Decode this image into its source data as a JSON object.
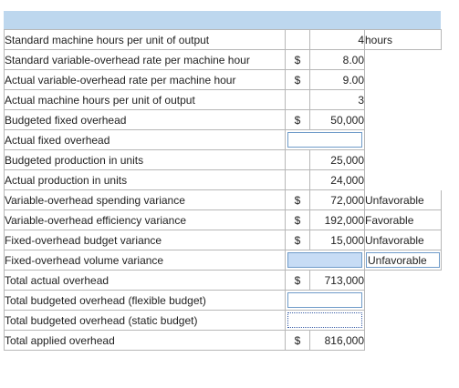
{
  "rows": [
    {
      "label": "Standard machine hours per unit of output",
      "dollar": "",
      "value": "4",
      "unit": "hours",
      "value_input": "",
      "unit_input": ""
    },
    {
      "label": "Standard variable-overhead rate per machine hour",
      "dollar": "$",
      "value": "8.00",
      "unit": "",
      "value_input": "",
      "unit_input": ""
    },
    {
      "label": "Actual variable-overhead rate per machine hour",
      "dollar": "$",
      "value": "9.00",
      "unit": "",
      "value_input": "",
      "unit_input": ""
    },
    {
      "label": "Actual machine hours per unit of output",
      "dollar": "",
      "value": "3",
      "unit": "",
      "value_input": "",
      "unit_input": ""
    },
    {
      "label": "Budgeted fixed overhead",
      "dollar": "$",
      "value": "50,000",
      "unit": "",
      "value_input": "",
      "unit_input": ""
    },
    {
      "label": "Actual fixed overhead",
      "dollar": "",
      "value": "",
      "unit": "",
      "value_input": "",
      "unit_input": ""
    },
    {
      "label": "Budgeted production in units",
      "dollar": "",
      "value": "25,000",
      "unit": "",
      "value_input": "",
      "unit_input": ""
    },
    {
      "label": "Actual production in units",
      "dollar": "",
      "value": "24,000",
      "unit": "",
      "value_input": "",
      "unit_input": ""
    },
    {
      "label": "Variable-overhead spending variance",
      "dollar": "$",
      "value": "72,000",
      "unit": "Unfavorable",
      "value_input": "",
      "unit_input": ""
    },
    {
      "label": "Variable-overhead efficiency variance",
      "dollar": "$",
      "value": "192,000",
      "unit": "Favorable",
      "value_input": "",
      "unit_input": ""
    },
    {
      "label": "Fixed-overhead budget variance",
      "dollar": "$",
      "value": "15,000",
      "unit": "Unfavorable",
      "value_input": "",
      "unit_input": ""
    },
    {
      "label": "Fixed-overhead volume variance",
      "dollar": "",
      "value": "",
      "unit": "",
      "value_input": "",
      "unit_input": "Unfavorable"
    },
    {
      "label": "Total actual overhead",
      "dollar": "$",
      "value": "713,000",
      "unit": "",
      "value_input": "",
      "unit_input": ""
    },
    {
      "label": "Total budgeted overhead (flexible budget)",
      "dollar": "",
      "value": "",
      "unit": "",
      "value_input": "",
      "unit_input": ""
    },
    {
      "label": "Total budgeted overhead (static budget)",
      "dollar": "",
      "value": "",
      "unit": "",
      "value_input": "",
      "unit_input": ""
    },
    {
      "label": "Total applied overhead",
      "dollar": "$",
      "value": "816,000",
      "unit": "",
      "value_input": "",
      "unit_input": ""
    }
  ],
  "colors": {
    "header_band": "#bdd7ee",
    "input_fill": "#c7dcf5",
    "input_border": "#6f9bc9",
    "grid_line": "#b7b7b7"
  }
}
